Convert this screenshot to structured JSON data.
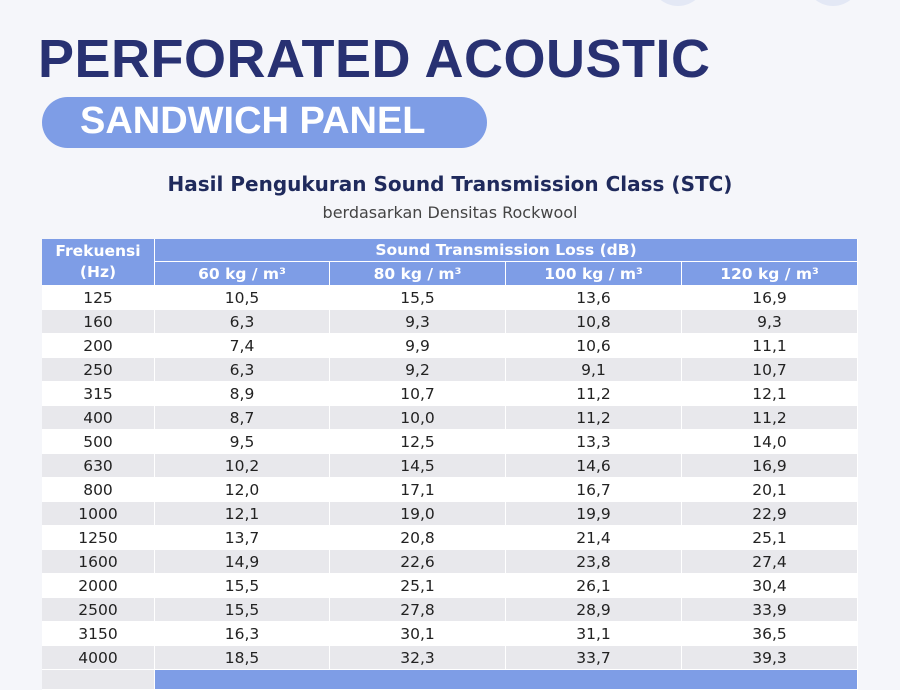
{
  "header": {
    "title": "PERFORATED ACOUSTIC",
    "badge": "SANDWICH PANEL"
  },
  "table_title": "Hasil Pengukuran Sound Transmission Class (STC)",
  "table_subtitle": "berdasarkan Densitas Rockwool",
  "table": {
    "freq_header": [
      "Frekuensi",
      "(Hz)"
    ],
    "group_header": "Sound Transmission Loss (dB)",
    "columns": [
      "60 kg / m³",
      "80 kg / m³",
      "100 kg / m³",
      "120 kg / m³"
    ],
    "rows": [
      [
        "125",
        "10,5",
        "15,5",
        "13,6",
        "16,9"
      ],
      [
        "160",
        "6,3",
        "9,3",
        "10,8",
        "9,3"
      ],
      [
        "200",
        "7,4",
        "9,9",
        "10,6",
        "11,1"
      ],
      [
        "250",
        "6,3",
        "9,2",
        "9,1",
        "10,7"
      ],
      [
        "315",
        "8,9",
        "10,7",
        "11,2",
        "12,1"
      ],
      [
        "400",
        "8,7",
        "10,0",
        "11,2",
        "11,2"
      ],
      [
        "500",
        "9,5",
        "12,5",
        "13,3",
        "14,0"
      ],
      [
        "630",
        "10,2",
        "14,5",
        "14,6",
        "16,9"
      ],
      [
        "800",
        "12,0",
        "17,1",
        "16,7",
        "20,1"
      ],
      [
        "1000",
        "12,1",
        "19,0",
        "19,9",
        "22,9"
      ],
      [
        "1250",
        "13,7",
        "20,8",
        "21,4",
        "25,1"
      ],
      [
        "1600",
        "14,9",
        "22,6",
        "23,8",
        "27,4"
      ],
      [
        "2000",
        "15,5",
        "25,1",
        "26,1",
        "30,4"
      ],
      [
        "2500",
        "15,5",
        "27,8",
        "28,9",
        "33,9"
      ],
      [
        "3150",
        "16,3",
        "30,1",
        "31,1",
        "36,5"
      ],
      [
        "4000",
        "18,5",
        "32,3",
        "33,7",
        "39,3"
      ]
    ]
  }
}
